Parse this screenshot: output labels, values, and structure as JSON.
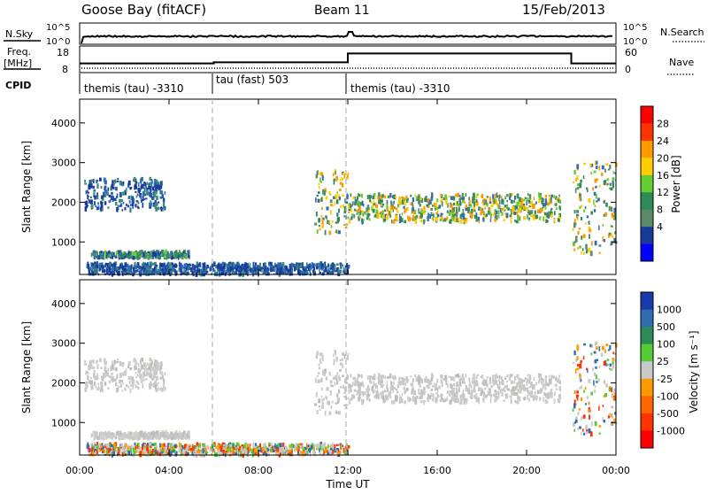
{
  "header": {
    "station": "Goose Bay (fitACF)",
    "beam": "Beam 11",
    "date": "15/Feb/2013"
  },
  "nsky_panel": {
    "left_label": "N.Sky",
    "right_label": "N.Search",
    "tick_high": "10^5",
    "tick_low": "10^0"
  },
  "freq_panel": {
    "left_label_1": "Freq.",
    "left_label_2": "[MHz]",
    "right_label": "Nave",
    "left_ticks": [
      "18",
      "8"
    ],
    "right_ticks": [
      "60",
      "0"
    ],
    "freq_steps": [
      {
        "start_ut": 0.0,
        "end_ut": 6.0,
        "value": 10.2
      },
      {
        "start_ut": 6.0,
        "end_ut": 12.0,
        "value": 10.8
      },
      {
        "start_ut": 12.0,
        "end_ut": 22.0,
        "value": 15.8
      },
      {
        "start_ut": 22.0,
        "end_ut": 24.0,
        "value": 10.2
      }
    ]
  },
  "cpid_panel": {
    "label": "CPID",
    "segments": [
      {
        "start_ut": 0,
        "end_ut": 6,
        "text": "themis (tau) -3310"
      },
      {
        "start_ut": 6,
        "end_ut": 12,
        "text": "tau (fast) 503"
      },
      {
        "start_ut": 12,
        "end_ut": 24,
        "text": "themis (tau) -3310"
      }
    ]
  },
  "power_colorbar": {
    "label": "Power [dB]",
    "ticks": [
      "28",
      "24",
      "20",
      "16",
      "12",
      "8",
      "4"
    ],
    "colors": [
      "#ff0000",
      "#ff3300",
      "#ff9900",
      "#ffcc00",
      "#66cc33",
      "#2e8b57",
      "#5a8a6a",
      "#1a3a9a",
      "#0000ff"
    ]
  },
  "velocity_colorbar": {
    "label": "Velocity [m s⁻¹]",
    "ticks": [
      "1000",
      "500",
      "100",
      "25",
      "-25",
      "-100",
      "-500",
      "-1000"
    ],
    "colors": [
      "#1a3aaa",
      "#2e6db0",
      "#2e8b57",
      "#55cc33",
      "#c8c8c8",
      "#ff9900",
      "#ff6600",
      "#ff3300",
      "#ff0000"
    ]
  },
  "chart_data": {
    "type": "heatmap",
    "panels": [
      "Power",
      "Velocity"
    ],
    "ylabel": "Slant Range [km]",
    "xlabel": "Time UT",
    "x_ticks": [
      "00:00",
      "04:00",
      "08:00",
      "12:00",
      "16:00",
      "20:00",
      "00:00"
    ],
    "y_ticks": [
      "1000",
      "2000",
      "3000",
      "4000"
    ],
    "xlim_hours": [
      0,
      24
    ],
    "ylim_km": [
      180,
      4600
    ],
    "mode_boundaries_ut": [
      6,
      12
    ],
    "echo_regions": [
      {
        "ut_start": 0.2,
        "ut_end": 3.8,
        "range_start_km": 1800,
        "range_end_km": 2600,
        "power_class": "low",
        "velocity_class": "near-zero"
      },
      {
        "ut_start": 0.5,
        "ut_end": 4.9,
        "range_start_km": 600,
        "range_end_km": 750,
        "power_class": "medium",
        "velocity_class": "near-zero"
      },
      {
        "ut_start": 0.3,
        "ut_end": 12.0,
        "range_start_km": 180,
        "range_end_km": 450,
        "power_class": "low",
        "velocity_class": "mixed"
      },
      {
        "ut_start": 10.5,
        "ut_end": 12.0,
        "range_start_km": 1200,
        "range_end_km": 2800,
        "power_class": "high",
        "velocity_class": "near-zero"
      },
      {
        "ut_start": 12.0,
        "ut_end": 21.5,
        "range_start_km": 1500,
        "range_end_km": 2200,
        "power_class": "high",
        "velocity_class": "near-zero"
      },
      {
        "ut_start": 22.0,
        "ut_end": 24.0,
        "range_start_km": 700,
        "range_end_km": 3000,
        "power_class": "high",
        "velocity_class": "mixed"
      }
    ]
  }
}
